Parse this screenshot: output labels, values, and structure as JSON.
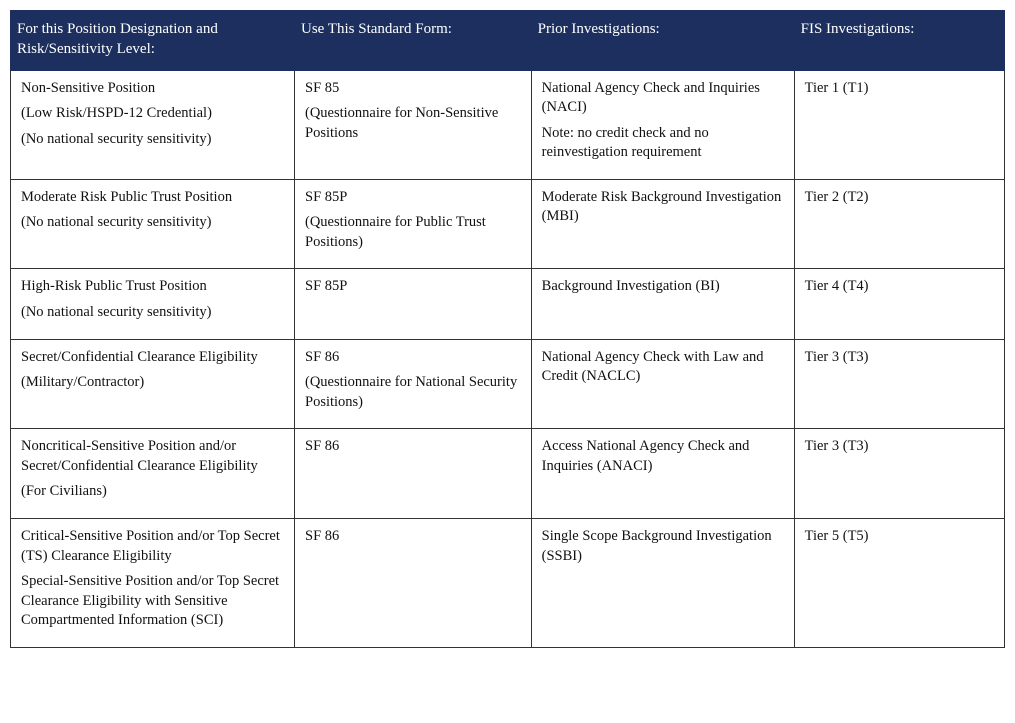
{
  "table": {
    "type": "table",
    "header_bg": "#1d2f5f",
    "header_fg": "#ffffff",
    "border_color": "#333333",
    "columns": [
      "For this Position Designation and Risk/Sensitivity Level:",
      "Use This Standard Form:",
      "Prior Investigations:",
      "FIS Investigations:"
    ],
    "rows": [
      {
        "c0": [
          "Non-Sensitive Position",
          "(Low Risk/HSPD-12 Credential)",
          "(No national security sensitivity)"
        ],
        "c1": [
          "SF 85",
          "(Questionnaire for Non-Sensitive Positions"
        ],
        "c2": [
          "National Agency Check and Inquiries (NACI)",
          "Note: no credit check and no reinvestigation requirement"
        ],
        "c3": [
          "Tier 1 (T1)"
        ]
      },
      {
        "c0": [
          "Moderate Risk Public Trust Position",
          "(No national security sensitivity)"
        ],
        "c1": [
          "SF 85P",
          "(Questionnaire for Public Trust Positions)"
        ],
        "c2": [
          "Moderate Risk Background Investigation (MBI)"
        ],
        "c3": [
          "Tier 2 (T2)"
        ]
      },
      {
        "c0": [
          "High-Risk Public Trust Position",
          "(No national security sensitivity)"
        ],
        "c1": [
          "SF 85P"
        ],
        "c2": [
          "Background Investigation (BI)"
        ],
        "c3": [
          "Tier 4 (T4)"
        ]
      },
      {
        "c0": [
          "Secret/Confidential Clearance Eligibility",
          "(Military/Contractor)"
        ],
        "c1": [
          "SF 86",
          "(Questionnaire for National Security Positions)"
        ],
        "c2": [
          "National Agency Check with Law and Credit (NACLC)"
        ],
        "c3": [
          "Tier 3 (T3)"
        ]
      },
      {
        "c0": [
          "Noncritical-Sensitive Position and/or Secret/Confidential Clearance Eligibility",
          "(For Civilians)"
        ],
        "c1": [
          "SF 86"
        ],
        "c2": [
          "Access National Agency Check and Inquiries (ANACI)"
        ],
        "c3": [
          "Tier 3 (T3)"
        ]
      },
      {
        "c0": [
          "Critical-Sensitive Position and/or Top Secret (TS) Clearance Eligibility",
          "Special-Sensitive Position and/or Top Secret Clearance Eligibility with Sensitive Compartmented Information (SCI)"
        ],
        "c1": [
          "SF 86"
        ],
        "c2": [
          "Single Scope Background Investigation (SSBI)"
        ],
        "c3": [
          "Tier 5 (T5)"
        ]
      }
    ]
  }
}
